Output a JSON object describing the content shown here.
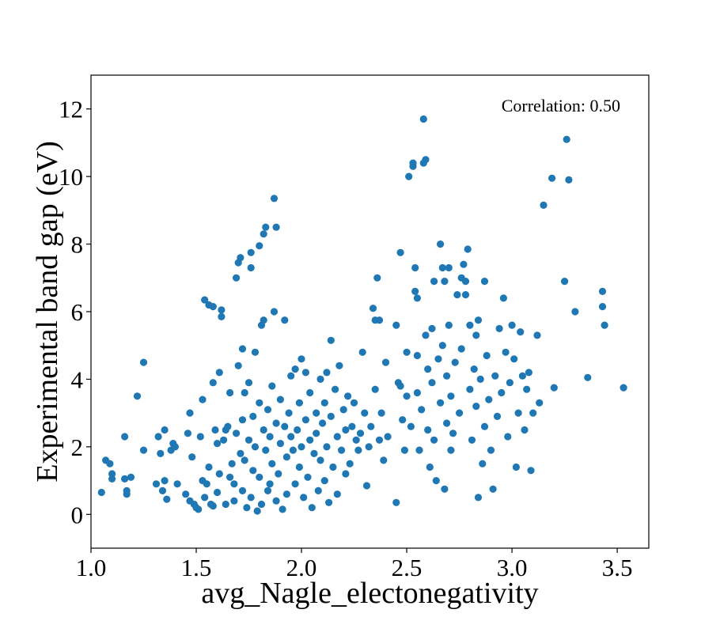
{
  "chart_data": {
    "type": "scatter",
    "title": "",
    "xlabel": "avg_Nagle_electonegativity",
    "ylabel": "Experimental band gap (eV)",
    "xlim": [
      1.0,
      3.65
    ],
    "ylim": [
      -1.0,
      13.0
    ],
    "xticks": [
      "1.0",
      "1.5",
      "2.0",
      "2.5",
      "3.0",
      "3.5"
    ],
    "yticks": [
      "0",
      "2",
      "4",
      "6",
      "8",
      "10",
      "12"
    ],
    "grid": false,
    "legend": "none",
    "annotation": "Correlation: 0.50",
    "marker_color": "#1f77b4",
    "points": [
      [
        1.05,
        0.65
      ],
      [
        1.07,
        1.6
      ],
      [
        1.09,
        1.5
      ],
      [
        1.1,
        1.2
      ],
      [
        1.1,
        1.05
      ],
      [
        1.16,
        2.3
      ],
      [
        1.16,
        1.05
      ],
      [
        1.17,
        0.7
      ],
      [
        1.17,
        0.6
      ],
      [
        1.19,
        1.1
      ],
      [
        1.22,
        3.5
      ],
      [
        1.25,
        4.5
      ],
      [
        1.25,
        1.9
      ],
      [
        1.31,
        0.9
      ],
      [
        1.32,
        2.3
      ],
      [
        1.33,
        1.8
      ],
      [
        1.34,
        0.7
      ],
      [
        1.35,
        2.5
      ],
      [
        1.35,
        1.0
      ],
      [
        1.36,
        0.45
      ],
      [
        1.38,
        1.9
      ],
      [
        1.39,
        2.1
      ],
      [
        1.4,
        2.0
      ],
      [
        1.41,
        0.9
      ],
      [
        1.45,
        0.6
      ],
      [
        1.46,
        2.4
      ],
      [
        1.47,
        3.0
      ],
      [
        1.47,
        0.4
      ],
      [
        1.48,
        1.7
      ],
      [
        1.49,
        0.3
      ],
      [
        1.5,
        0.2
      ],
      [
        1.51,
        0.15
      ],
      [
        1.52,
        2.3
      ],
      [
        1.53,
        3.4
      ],
      [
        1.53,
        1.0
      ],
      [
        1.54,
        6.35
      ],
      [
        1.54,
        0.5
      ],
      [
        1.55,
        0.9
      ],
      [
        1.56,
        6.2
      ],
      [
        1.56,
        1.4
      ],
      [
        1.57,
        0.3
      ],
      [
        1.58,
        6.15
      ],
      [
        1.58,
        0.25
      ],
      [
        1.58,
        3.9
      ],
      [
        1.59,
        2.5
      ],
      [
        1.6,
        2.1
      ],
      [
        1.6,
        0.65
      ],
      [
        1.61,
        4.2
      ],
      [
        1.61,
        1.2
      ],
      [
        1.62,
        5.85
      ],
      [
        1.62,
        6.05
      ],
      [
        1.63,
        2.2
      ],
      [
        1.64,
        2.5
      ],
      [
        1.64,
        0.3
      ],
      [
        1.65,
        2.6
      ],
      [
        1.66,
        3.6
      ],
      [
        1.66,
        1.1
      ],
      [
        1.67,
        1.5
      ],
      [
        1.68,
        0.9
      ],
      [
        1.68,
        0.4
      ],
      [
        1.69,
        7.0
      ],
      [
        1.69,
        2.4
      ],
      [
        1.7,
        7.45
      ],
      [
        1.7,
        4.4
      ],
      [
        1.71,
        7.6
      ],
      [
        1.71,
        1.8
      ],
      [
        1.72,
        4.9
      ],
      [
        1.72,
        2.8
      ],
      [
        1.72,
        0.7
      ],
      [
        1.73,
        3.6
      ],
      [
        1.73,
        1.6
      ],
      [
        1.74,
        0.2
      ],
      [
        1.75,
        3.9
      ],
      [
        1.75,
        2.2
      ],
      [
        1.76,
        7.3
      ],
      [
        1.76,
        7.75
      ],
      [
        1.76,
        0.5
      ],
      [
        1.77,
        2.9
      ],
      [
        1.77,
        1.3
      ],
      [
        1.78,
        4.8
      ],
      [
        1.78,
        2.0
      ],
      [
        1.79,
        0.1
      ],
      [
        1.8,
        7.95
      ],
      [
        1.8,
        3.3
      ],
      [
        1.8,
        1.1
      ],
      [
        1.81,
        5.6
      ],
      [
        1.81,
        0.3
      ],
      [
        1.82,
        5.75
      ],
      [
        1.82,
        8.3
      ],
      [
        1.82,
        2.5
      ],
      [
        1.83,
        8.5
      ],
      [
        1.83,
        1.9
      ],
      [
        1.84,
        3.1
      ],
      [
        1.84,
        0.7
      ],
      [
        1.85,
        2.3
      ],
      [
        1.85,
        0.9
      ],
      [
        1.86,
        3.8
      ],
      [
        1.86,
        1.5
      ],
      [
        1.87,
        9.35
      ],
      [
        1.87,
        6.0
      ],
      [
        1.88,
        8.5
      ],
      [
        1.88,
        2.7
      ],
      [
        1.88,
        0.4
      ],
      [
        1.89,
        1.2
      ],
      [
        1.9,
        3.4
      ],
      [
        1.9,
        2.1
      ],
      [
        1.91,
        0.15
      ],
      [
        1.92,
        5.75
      ],
      [
        1.92,
        2.6
      ],
      [
        1.93,
        1.7
      ],
      [
        1.93,
        0.6
      ],
      [
        1.94,
        3.0
      ],
      [
        1.95,
        2.3
      ],
      [
        1.95,
        4.1
      ],
      [
        1.96,
        1.9
      ],
      [
        1.97,
        4.3
      ],
      [
        1.97,
        0.9
      ],
      [
        1.98,
        2.5
      ],
      [
        1.99,
        3.3
      ],
      [
        1.99,
        1.4
      ],
      [
        2.0,
        4.6
      ],
      [
        2.0,
        2.0
      ],
      [
        2.01,
        0.5
      ],
      [
        2.02,
        4.2
      ],
      [
        2.02,
        2.8
      ],
      [
        2.03,
        1.1
      ],
      [
        2.04,
        3.6
      ],
      [
        2.04,
        2.2
      ],
      [
        2.05,
        0.2
      ],
      [
        2.06,
        1.8
      ],
      [
        2.07,
        3.0
      ],
      [
        2.07,
        2.4
      ],
      [
        2.08,
        0.7
      ],
      [
        2.09,
        4.0
      ],
      [
        2.09,
        1.6
      ],
      [
        2.1,
        2.7
      ],
      [
        2.11,
        3.3
      ],
      [
        2.11,
        1.0
      ],
      [
        2.12,
        4.2
      ],
      [
        2.12,
        2.0
      ],
      [
        2.13,
        0.35
      ],
      [
        2.14,
        5.15
      ],
      [
        2.14,
        2.9
      ],
      [
        2.15,
        1.4
      ],
      [
        2.16,
        3.7
      ],
      [
        2.17,
        2.3
      ],
      [
        2.17,
        0.6
      ],
      [
        2.18,
        4.4
      ],
      [
        2.19,
        1.9
      ],
      [
        2.2,
        3.1
      ],
      [
        2.21,
        2.5
      ],
      [
        2.21,
        1.2
      ],
      [
        2.22,
        3.5
      ],
      [
        2.23,
        1.5
      ],
      [
        2.24,
        2.6
      ],
      [
        2.25,
        3.3
      ],
      [
        2.26,
        2.2
      ],
      [
        2.27,
        1.9
      ],
      [
        2.28,
        2.4
      ],
      [
        2.29,
        4.8
      ],
      [
        2.3,
        3.0
      ],
      [
        2.31,
        0.85
      ],
      [
        2.32,
        2.0
      ],
      [
        2.33,
        2.6
      ],
      [
        2.34,
        6.1
      ],
      [
        2.35,
        5.75
      ],
      [
        2.35,
        3.7
      ],
      [
        2.36,
        7.0
      ],
      [
        2.37,
        5.75
      ],
      [
        2.37,
        2.2
      ],
      [
        2.38,
        3.0
      ],
      [
        2.39,
        1.6
      ],
      [
        2.4,
        4.5
      ],
      [
        2.41,
        2.3
      ],
      [
        2.45,
        5.6
      ],
      [
        2.45,
        0.35
      ],
      [
        2.46,
        3.9
      ],
      [
        2.47,
        7.75
      ],
      [
        2.47,
        3.8
      ],
      [
        2.48,
        2.8
      ],
      [
        2.49,
        1.9
      ],
      [
        2.5,
        4.8
      ],
      [
        2.5,
        3.5
      ],
      [
        2.51,
        10.0
      ],
      [
        2.52,
        2.6
      ],
      [
        2.53,
        10.4
      ],
      [
        2.53,
        10.3
      ],
      [
        2.54,
        7.3
      ],
      [
        2.54,
        6.6
      ],
      [
        2.55,
        6.4
      ],
      [
        2.55,
        4.7
      ],
      [
        2.55,
        3.6
      ],
      [
        2.56,
        1.9
      ],
      [
        2.57,
        3.1
      ],
      [
        2.58,
        11.7
      ],
      [
        2.58,
        10.4
      ],
      [
        2.59,
        10.5
      ],
      [
        2.59,
        5.3
      ],
      [
        2.6,
        4.3
      ],
      [
        2.6,
        2.5
      ],
      [
        2.61,
        1.4
      ],
      [
        2.62,
        5.5
      ],
      [
        2.62,
        3.9
      ],
      [
        2.63,
        6.9
      ],
      [
        2.63,
        2.2
      ],
      [
        2.64,
        1.0
      ],
      [
        2.65,
        4.6
      ],
      [
        2.66,
        8.0
      ],
      [
        2.66,
        3.3
      ],
      [
        2.67,
        7.3
      ],
      [
        2.67,
        5.0
      ],
      [
        2.68,
        0.75
      ],
      [
        2.68,
        6.9
      ],
      [
        2.69,
        4.1
      ],
      [
        2.69,
        2.7
      ],
      [
        2.7,
        7.3
      ],
      [
        2.7,
        5.6
      ],
      [
        2.71,
        3.5
      ],
      [
        2.71,
        1.9
      ],
      [
        2.72,
        2.4
      ],
      [
        2.73,
        4.5
      ],
      [
        2.74,
        6.5
      ],
      [
        2.75,
        3.0
      ],
      [
        2.76,
        7.0
      ],
      [
        2.76,
        4.9
      ],
      [
        2.77,
        7.4
      ],
      [
        2.78,
        6.9
      ],
      [
        2.78,
        6.5
      ],
      [
        2.79,
        7.85
      ],
      [
        2.8,
        5.6
      ],
      [
        2.8,
        3.7
      ],
      [
        2.81,
        2.2
      ],
      [
        2.82,
        4.3
      ],
      [
        2.83,
        5.3
      ],
      [
        2.83,
        3.2
      ],
      [
        2.84,
        0.5
      ],
      [
        2.84,
        5.75
      ],
      [
        2.85,
        4.0
      ],
      [
        2.86,
        1.5
      ],
      [
        2.87,
        6.9
      ],
      [
        2.87,
        2.6
      ],
      [
        2.88,
        4.7
      ],
      [
        2.89,
        3.4
      ],
      [
        2.9,
        1.9
      ],
      [
        2.91,
        0.75
      ],
      [
        2.92,
        4.1
      ],
      [
        2.93,
        2.9
      ],
      [
        2.94,
        5.5
      ],
      [
        2.95,
        3.6
      ],
      [
        2.96,
        6.4
      ],
      [
        2.97,
        4.8
      ],
      [
        2.98,
        2.3
      ],
      [
        2.99,
        3.9
      ],
      [
        3.0,
        5.6
      ],
      [
        3.01,
        4.6
      ],
      [
        3.02,
        1.4
      ],
      [
        3.03,
        3.0
      ],
      [
        3.04,
        5.4
      ],
      [
        3.05,
        4.1
      ],
      [
        3.06,
        2.5
      ],
      [
        3.07,
        3.7
      ],
      [
        3.08,
        4.2
      ],
      [
        3.09,
        1.3
      ],
      [
        3.1,
        3.0
      ],
      [
        3.12,
        5.3
      ],
      [
        3.13,
        3.3
      ],
      [
        3.15,
        9.15
      ],
      [
        3.19,
        9.95
      ],
      [
        3.2,
        3.75
      ],
      [
        3.25,
        6.9
      ],
      [
        3.26,
        11.1
      ],
      [
        3.27,
        9.9
      ],
      [
        3.3,
        6.0
      ],
      [
        3.36,
        4.05
      ],
      [
        3.43,
        6.6
      ],
      [
        3.43,
        6.15
      ],
      [
        3.44,
        5.6
      ],
      [
        3.53,
        3.75
      ]
    ]
  }
}
